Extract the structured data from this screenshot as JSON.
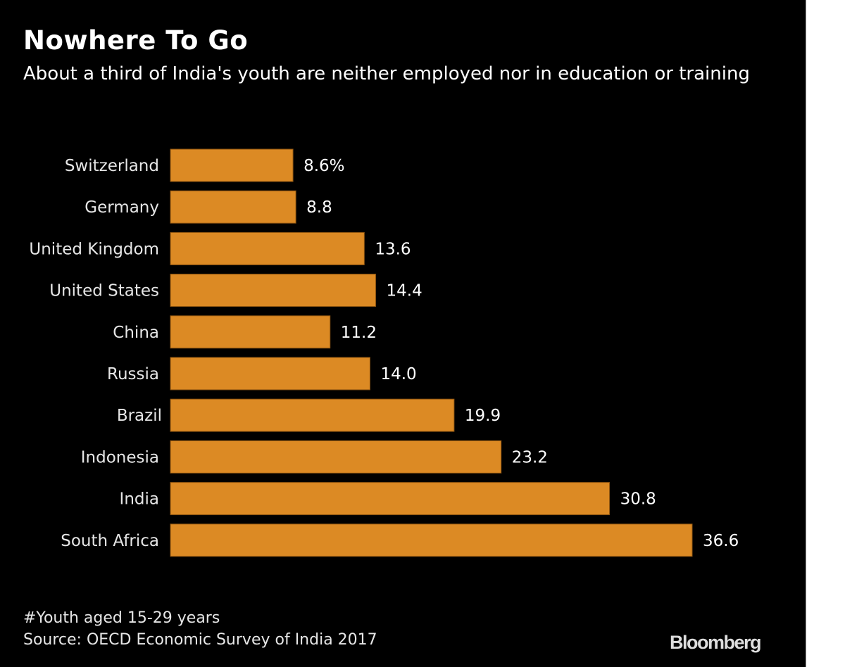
{
  "chart_data": {
    "type": "bar",
    "orientation": "horizontal",
    "title": "Nowhere To Go",
    "subtitle": "About a third of India's youth are neither employed nor in education or training",
    "categories": [
      "Switzerland",
      "Germany",
      "United Kingdom",
      "United States",
      "China",
      "Russia",
      "Brazil",
      "Indonesia",
      "India",
      "South Africa"
    ],
    "values": [
      8.6,
      8.8,
      13.6,
      14.4,
      11.2,
      14.0,
      19.9,
      23.2,
      30.8,
      36.6
    ],
    "value_labels": [
      "8.6%",
      "8.8",
      "13.6",
      "14.4",
      "11.2",
      "14.0",
      "19.9",
      "23.2",
      "30.8",
      "36.6"
    ],
    "unit": "%",
    "xlim": [
      0,
      37
    ],
    "grid": false,
    "legend": "none",
    "bar_color": "#dc8a24",
    "bar_edge_color": "#8a5210",
    "footnote": "#Youth aged 15-29 years",
    "source": "Source: OECD Economic Survey of India 2017"
  },
  "brand": {
    "logo_text": "Bloomberg",
    "background_color": "#000000"
  }
}
